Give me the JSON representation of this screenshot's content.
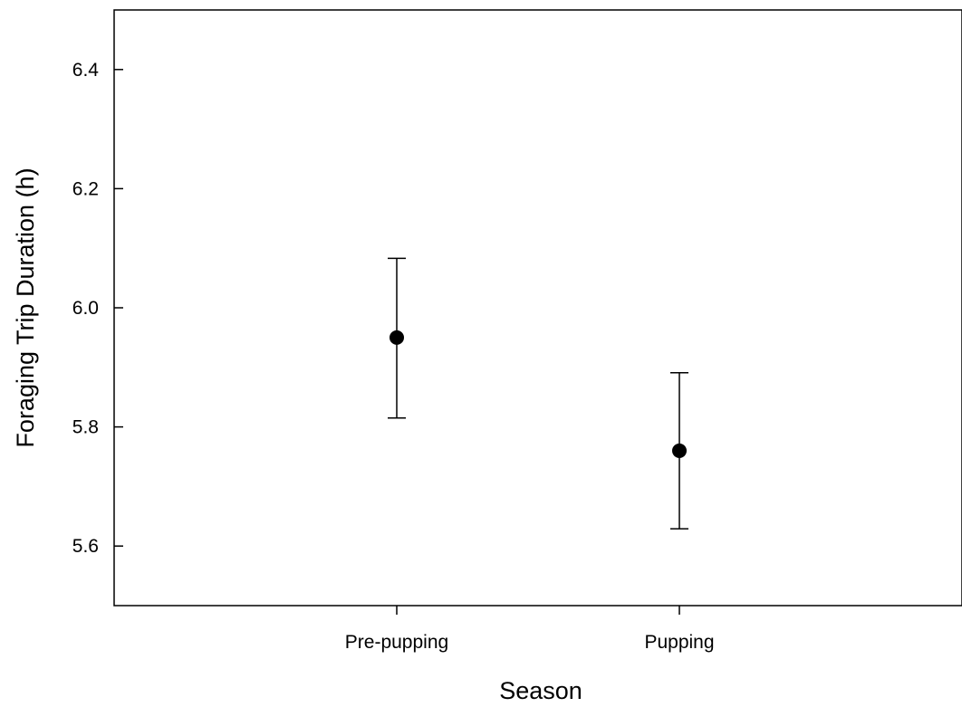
{
  "chart_data": {
    "type": "scatter",
    "title": "",
    "xlabel": "Season",
    "ylabel": "Foraging Trip Duration (h)",
    "categories": [
      "Pre-pupping",
      "Pupping"
    ],
    "x_positions": [
      1,
      2
    ],
    "xlim": [
      0,
      3
    ],
    "ylim": [
      5.5,
      6.5
    ],
    "yticks": [
      5.6,
      5.8,
      6.0,
      6.2,
      6.4
    ],
    "ytick_labels": [
      "5.6",
      "5.8",
      "6.0",
      "6.2",
      "6.4"
    ],
    "series": [
      {
        "values": [
          5.95,
          5.76
        ],
        "err_upper": [
          6.083,
          5.891
        ],
        "err_lower": [
          5.815,
          5.629
        ]
      }
    ],
    "grid": false,
    "marker_color": "#000000"
  }
}
